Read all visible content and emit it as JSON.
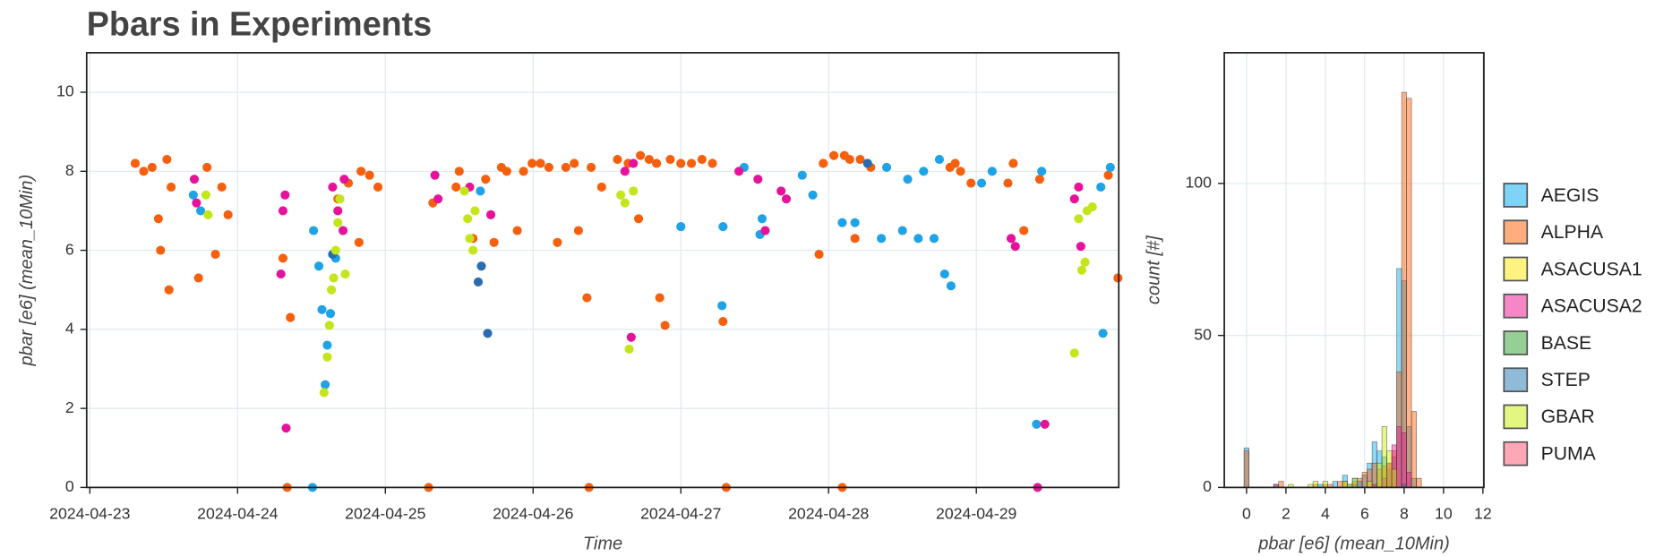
{
  "chart_data": [
    {
      "type": "scatter",
      "title": "Pbars in Experiments",
      "x_label": "Time",
      "y_label": "pbar [e6] (mean_10Min)",
      "xlim": [
        "2024-04-22 23:29",
        "2024-04-29 23:08"
      ],
      "xticks": [
        "2024-04-23",
        "2024-04-24",
        "2024-04-25",
        "2024-04-26",
        "2024-04-27",
        "2024-04-28",
        "2024-04-29"
      ],
      "ylim": [
        0,
        11
      ],
      "yticks": [
        0,
        2,
        4,
        6,
        8,
        10
      ],
      "grid": true,
      "series": [
        {
          "color": "#f5600f",
          "x": [
            "2024-04-23 07:22",
            "2024-04-23 08:45",
            "2024-04-23 10:07",
            "2024-04-23 11:08",
            "2024-04-23 11:29",
            "2024-04-23 12:31",
            "2024-04-23 12:51",
            "2024-04-23 13:12",
            "2024-04-23 17:39",
            "2024-04-23 19:02",
            "2024-04-23 20:24",
            "2024-04-23 21:26",
            "2024-04-23 22:27",
            "2024-04-24 07:22",
            "2024-04-24 08:03",
            "2024-04-24 08:34",
            "2024-04-24 16:17",
            "2024-04-24 18:00",
            "2024-04-24 19:43",
            "2024-04-24 20:03",
            "2024-04-24 21:26",
            "2024-04-24 22:48",
            "2024-04-25 07:02",
            "2024-04-25 07:43",
            "2024-04-25 11:29",
            "2024-04-25 12:00",
            "2024-04-25 14:14",
            "2024-04-25 16:17",
            "2024-04-25 17:39",
            "2024-04-25 18:51",
            "2024-04-25 19:43",
            "2024-04-25 21:26",
            "2024-04-25 22:27",
            "2024-04-25 23:50",
            "2024-04-26 01:12",
            "2024-04-26 02:34",
            "2024-04-26 03:57",
            "2024-04-26 05:19",
            "2024-04-26 06:41",
            "2024-04-26 07:22",
            "2024-04-26 08:45",
            "2024-04-26 09:05",
            "2024-04-26 09:26",
            "2024-04-26 11:08",
            "2024-04-26 13:42",
            "2024-04-26 15:26",
            "2024-04-26 17:08",
            "2024-04-26 17:26",
            "2024-04-26 18:51",
            "2024-04-26 20:03",
            "2024-04-26 20:34",
            "2024-04-26 21:26",
            "2024-04-26 22:17",
            "2024-04-27 00:00",
            "2024-04-27 01:43",
            "2024-04-27 03:26",
            "2024-04-27 05:08",
            "2024-04-27 06:51",
            "2024-04-27 07:22",
            "2024-04-27 22:27",
            "2024-04-27 23:08",
            "2024-04-28 00:51",
            "2024-04-28 02:13",
            "2024-04-28 02:34",
            "2024-04-28 03:26",
            "2024-04-28 04:17",
            "2024-04-28 05:08",
            "2024-04-28 06:51",
            "2024-04-28 19:43",
            "2024-04-28 20:34",
            "2024-04-28 21:26",
            "2024-04-28 23:08",
            "2024-04-29 05:08",
            "2024-04-29 06:00",
            "2024-04-29 07:43",
            "2024-04-29 10:17",
            "2024-04-29 21:26",
            "2024-04-29 23:00"
          ],
          "values": [
            8.2,
            8.0,
            8.1,
            6.8,
            6.0,
            8.3,
            5.0,
            7.6,
            5.3,
            8.1,
            5.9,
            7.6,
            6.9,
            5.8,
            0,
            4.3,
            7.3,
            7.7,
            6.2,
            8.0,
            7.9,
            7.6,
            0,
            7.2,
            7.6,
            8.0,
            6.3,
            7.8,
            6.2,
            8.1,
            8.0,
            6.5,
            8.0,
            8.2,
            8.2,
            8.1,
            6.2,
            8.1,
            8.2,
            6.5,
            4.8,
            0,
            8.1,
            7.6,
            8.3,
            8.2,
            6.8,
            8.4,
            8.3,
            8.2,
            4.8,
            4.1,
            8.3,
            8.2,
            8.2,
            8.3,
            8.2,
            4.2,
            0,
            5.9,
            8.2,
            8.4,
            0,
            8.4,
            8.3,
            6.3,
            8.3,
            8.1,
            8.1,
            8.2,
            8.0,
            7.7,
            7.7,
            8.2,
            6.5,
            7.8,
            7.9,
            5.3
          ]
        },
        {
          "color": "#1fa3e6",
          "x": [
            "2024-04-23 16:48",
            "2024-04-23 18:00",
            "2024-04-24 12:10",
            "2024-04-24 12:20",
            "2024-04-24 13:12",
            "2024-04-24 13:42",
            "2024-04-24 14:14",
            "2024-04-24 14:34",
            "2024-04-24 15:05",
            "2024-04-24 15:56",
            "2024-04-25 15:26",
            "2024-04-27 00:00",
            "2024-04-27 06:41",
            "2024-04-27 06:51",
            "2024-04-27 10:17",
            "2024-04-27 12:51",
            "2024-04-27 13:12",
            "2024-04-27 19:43",
            "2024-04-27 21:26",
            "2024-04-28 02:13",
            "2024-04-28 04:17",
            "2024-04-28 08:34",
            "2024-04-28 09:26",
            "2024-04-28 12:00",
            "2024-04-28 12:51",
            "2024-04-28 14:34",
            "2024-04-28 15:26",
            "2024-04-28 17:08",
            "2024-04-28 18:00",
            "2024-04-28 18:51",
            "2024-04-28 19:53",
            "2024-04-29 00:51",
            "2024-04-29 02:34",
            "2024-04-29 09:46",
            "2024-04-29 10:37",
            "2024-04-29 20:13",
            "2024-04-29 20:34",
            "2024-04-29 21:46"
          ],
          "values": [
            7.4,
            7.0,
            0,
            6.5,
            5.6,
            4.5,
            2.6,
            3.6,
            4.4,
            5.8,
            7.5,
            6.6,
            4.6,
            6.6,
            8.1,
            6.4,
            6.8,
            7.9,
            7.4,
            6.7,
            6.7,
            6.3,
            8.1,
            6.5,
            7.8,
            6.3,
            8.0,
            6.3,
            8.3,
            5.4,
            5.1,
            7.7,
            8.0,
            1.6,
            8.0,
            7.6,
            3.9,
            8.1
          ]
        },
        {
          "color": "#e5139b",
          "x": [
            "2024-04-23 16:58",
            "2024-04-23 17:19",
            "2024-04-24 07:02",
            "2024-04-24 07:22",
            "2024-04-24 07:43",
            "2024-04-24 07:53",
            "2024-04-24 15:26",
            "2024-04-24 16:17",
            "2024-04-24 17:08",
            "2024-04-24 17:19",
            "2024-04-25 08:03",
            "2024-04-25 08:34",
            "2024-04-25 13:42",
            "2024-04-25 17:08",
            "2024-04-26 14:55",
            "2024-04-26 15:56",
            "2024-04-26 16:17",
            "2024-04-27 09:26",
            "2024-04-27 12:31",
            "2024-04-27 13:42",
            "2024-04-27 16:17",
            "2024-04-27 17:08",
            "2024-04-29 05:39",
            "2024-04-29 06:20",
            "2024-04-29 09:57",
            "2024-04-29 11:08",
            "2024-04-29 15:56",
            "2024-04-29 16:37",
            "2024-04-29 16:58"
          ],
          "values": [
            7.8,
            7.2,
            5.4,
            7.0,
            7.4,
            1.5,
            7.6,
            7.0,
            6.5,
            7.8,
            7.9,
            7.3,
            7.6,
            6.9,
            8.0,
            3.8,
            8.2,
            8.0,
            7.8,
            6.5,
            7.5,
            7.3,
            6.3,
            6.1,
            0,
            1.6,
            7.3,
            7.6,
            6.1
          ]
        },
        {
          "color": "#2b6cb0",
          "x": [
            "2024-04-24 15:26",
            "2024-04-25 15:05",
            "2024-04-25 15:36",
            "2024-04-25 16:37",
            "2024-04-28 06:20"
          ],
          "values": [
            5.9,
            5.2,
            5.6,
            3.9,
            8.2
          ]
        },
        {
          "color": "#c3e61b",
          "x": [
            "2024-04-23 18:51",
            "2024-04-23 19:12",
            "2024-04-24 14:03",
            "2024-04-24 14:34",
            "2024-04-24 14:55",
            "2024-04-24 15:15",
            "2024-04-24 15:36",
            "2024-04-24 15:56",
            "2024-04-24 16:17",
            "2024-04-24 16:37",
            "2024-04-24 17:29",
            "2024-04-25 12:51",
            "2024-04-25 13:22",
            "2024-04-25 13:42",
            "2024-04-25 14:14",
            "2024-04-25 14:34",
            "2024-04-26 14:14",
            "2024-04-26 14:55",
            "2024-04-26 15:36",
            "2024-04-26 16:17",
            "2024-04-29 15:56",
            "2024-04-29 16:37",
            "2024-04-29 17:08",
            "2024-04-29 17:39",
            "2024-04-29 18:00",
            "2024-04-29 18:51"
          ],
          "values": [
            7.4,
            6.9,
            2.4,
            3.3,
            4.1,
            5.0,
            5.3,
            6.0,
            6.7,
            7.3,
            5.4,
            7.5,
            6.8,
            6.3,
            6.0,
            7.0,
            7.4,
            7.2,
            3.5,
            7.5,
            3.4,
            6.8,
            5.5,
            5.7,
            7.0,
            7.1
          ]
        }
      ]
    },
    {
      "type": "histogram",
      "x_label": "pbar [e6] (mean_10Min)",
      "y_label": "count [#]",
      "xlim": [
        -1.13,
        12.05
      ],
      "xticks": [
        0,
        2,
        4,
        6,
        8,
        10,
        12
      ],
      "ylim": [
        0,
        143
      ],
      "yticks": [
        0,
        50,
        100
      ],
      "grid": true,
      "bins": [
        -0.125,
        0.125,
        0.375,
        0.625,
        0.875,
        1.125,
        1.375,
        1.625,
        1.875,
        2.125,
        2.375,
        2.625,
        2.875,
        3.125,
        3.375,
        3.625,
        3.875,
        4.125,
        4.375,
        4.625,
        4.875,
        5.125,
        5.375,
        5.625,
        5.875,
        6.125,
        6.375,
        6.625,
        6.875,
        7.125,
        7.375,
        7.625,
        7.875,
        8.125,
        8.375,
        8.625,
        8.875
      ],
      "series": [
        {
          "name": "AEGIS",
          "color": "#00a8f0",
          "values": [
            13,
            0,
            0,
            0,
            0,
            0,
            1,
            0,
            0,
            0,
            0,
            0,
            0,
            0,
            0,
            1,
            0,
            0,
            2,
            0,
            4,
            0,
            3,
            0,
            4,
            8,
            15,
            12,
            10,
            6,
            10,
            72,
            68,
            20,
            3,
            0
          ]
        },
        {
          "name": "ALPHA",
          "color": "#ff5a00",
          "values": [
            12,
            0,
            0,
            0,
            0,
            0,
            0,
            2,
            0,
            0,
            0,
            0,
            0,
            0,
            1,
            0,
            1,
            1,
            0,
            2,
            2,
            0,
            2,
            3,
            5,
            6,
            8,
            6,
            7,
            8,
            12,
            38,
            130,
            128,
            25,
            3
          ]
        },
        {
          "name": "ASACUSA1",
          "color": "#ffe800",
          "values": [
            0,
            0,
            0,
            0,
            0,
            0,
            0,
            0,
            0,
            0,
            0,
            0,
            0,
            0,
            0,
            0,
            0,
            0,
            0,
            0,
            0,
            0,
            0,
            0,
            0,
            0,
            0,
            0,
            0,
            0,
            0,
            0,
            0,
            0,
            0,
            0
          ]
        },
        {
          "name": "ASACUSA2",
          "color": "#ee1090",
          "values": [
            0,
            0,
            0,
            0,
            0,
            0,
            1,
            0,
            0,
            0,
            0,
            0,
            0,
            0,
            0,
            0,
            0,
            0,
            0,
            0,
            0,
            0,
            0,
            0,
            0,
            0,
            1,
            0,
            3,
            8,
            14,
            20,
            18,
            5,
            0,
            0
          ]
        },
        {
          "name": "BASE",
          "color": "#2ca02c",
          "values": [
            0,
            0,
            0,
            0,
            0,
            0,
            0,
            0,
            0,
            0,
            0,
            0,
            0,
            0,
            0,
            0,
            0,
            0,
            0,
            0,
            0,
            0,
            0,
            0,
            0,
            0,
            0,
            0,
            0,
            0,
            0,
            0,
            0,
            0,
            0,
            0
          ]
        },
        {
          "name": "STEP",
          "color": "#1f77b4",
          "values": [
            0,
            0,
            0,
            0,
            0,
            0,
            0,
            0,
            0,
            0,
            0,
            0,
            0,
            0,
            0,
            0,
            0,
            0,
            0,
            0,
            0,
            1,
            1,
            2,
            0,
            0,
            0,
            0,
            0,
            0,
            0,
            0,
            1,
            0,
            0,
            0
          ]
        },
        {
          "name": "GBAR",
          "color": "#c8ee00",
          "values": [
            0,
            0,
            0,
            0,
            0,
            0,
            0,
            0,
            0,
            1,
            0,
            0,
            0,
            1,
            2,
            0,
            2,
            0,
            0,
            0,
            2,
            1,
            3,
            0,
            0,
            2,
            0,
            8,
            20,
            12,
            6,
            0,
            0,
            0,
            0,
            0
          ]
        },
        {
          "name": "PUMA",
          "color": "#ff5070",
          "values": [
            0,
            0,
            0,
            0,
            0,
            0,
            0,
            0,
            0,
            0,
            0,
            0,
            0,
            0,
            0,
            0,
            0,
            0,
            0,
            0,
            0,
            0,
            0,
            0,
            0,
            0,
            0,
            0,
            0,
            0,
            0,
            0,
            0,
            0,
            0,
            0
          ]
        }
      ],
      "legend": "right"
    }
  ]
}
